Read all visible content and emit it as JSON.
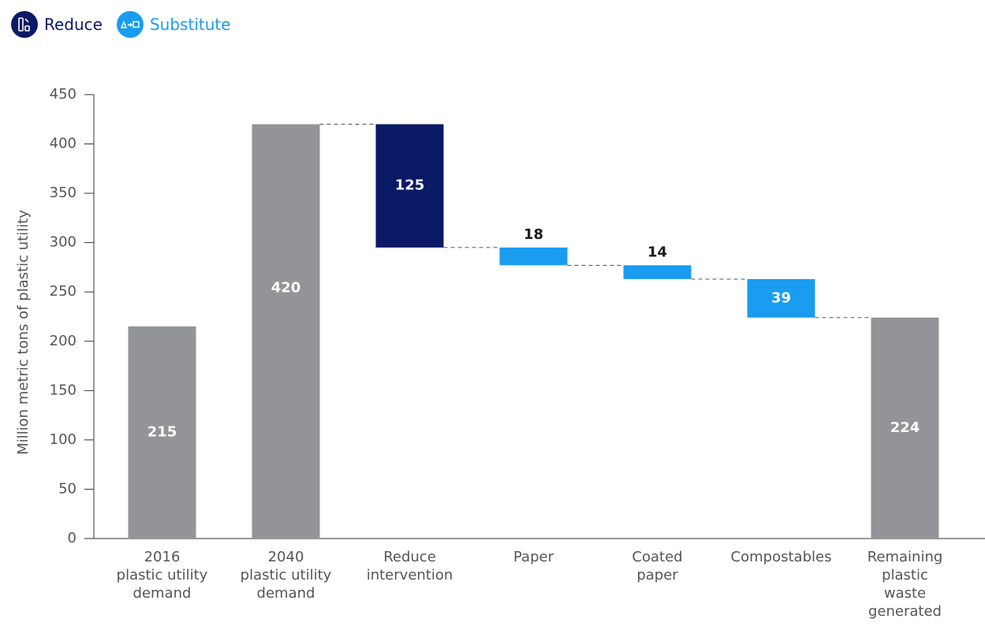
{
  "legend": [
    {
      "label": "Reduce",
      "color": "#0b1a66",
      "icon": "reduce-icon"
    },
    {
      "label": "Substitute",
      "color": "#1a9cf0",
      "icon": "substitute-icon"
    }
  ],
  "chart_data": {
    "type": "bar",
    "subtype": "waterfall",
    "ylabel": "Million metric tons of plastic utility",
    "ylim": [
      0,
      450
    ],
    "yticks": [
      0,
      50,
      100,
      150,
      200,
      250,
      300,
      350,
      400,
      450
    ],
    "grid": false,
    "legend_position": "top-left",
    "categories": [
      [
        "2016",
        "plastic utility",
        "demand"
      ],
      [
        "2040",
        "plastic utility",
        "demand"
      ],
      [
        "Reduce",
        "intervention"
      ],
      [
        "Paper"
      ],
      [
        "Coated",
        "paper"
      ],
      [
        "Compostables"
      ],
      [
        "Remaining",
        "plastic",
        "waste",
        "generated"
      ]
    ],
    "bars": [
      {
        "label": "215",
        "base": 0,
        "top": 215,
        "kind": "total",
        "label_pos": "inside"
      },
      {
        "label": "420",
        "base": 0,
        "top": 420,
        "kind": "total",
        "label_pos": "inside"
      },
      {
        "label": "125",
        "base": 295,
        "top": 420,
        "kind": "reduce",
        "label_pos": "inside"
      },
      {
        "label": "18",
        "base": 277,
        "top": 295,
        "kind": "substitute",
        "label_pos": "above"
      },
      {
        "label": "14",
        "base": 263,
        "top": 277,
        "kind": "substitute",
        "label_pos": "above"
      },
      {
        "label": "39",
        "base": 224,
        "top": 263,
        "kind": "substitute",
        "label_pos": "inside"
      },
      {
        "label": "224",
        "base": 0,
        "top": 224,
        "kind": "total",
        "label_pos": "inside"
      }
    ],
    "colors": {
      "total": "#939497",
      "reduce": "#0b1a66",
      "substitute": "#1a9cf0"
    }
  }
}
